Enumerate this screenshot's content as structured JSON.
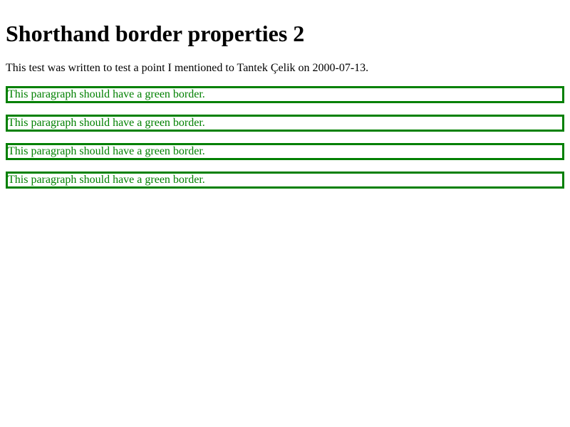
{
  "page": {
    "title": "Shorthand border properties 2",
    "intro": "This test was written to test a point I mentioned to Tantek Çelik on 2000-07-13.",
    "paragraphs": [
      "This paragraph should have a green border.",
      "This paragraph should have a green border.",
      "This paragraph should have a green border.",
      "This paragraph should have a green border."
    ]
  },
  "colors": {
    "border": "#008000",
    "text": "#008000"
  }
}
